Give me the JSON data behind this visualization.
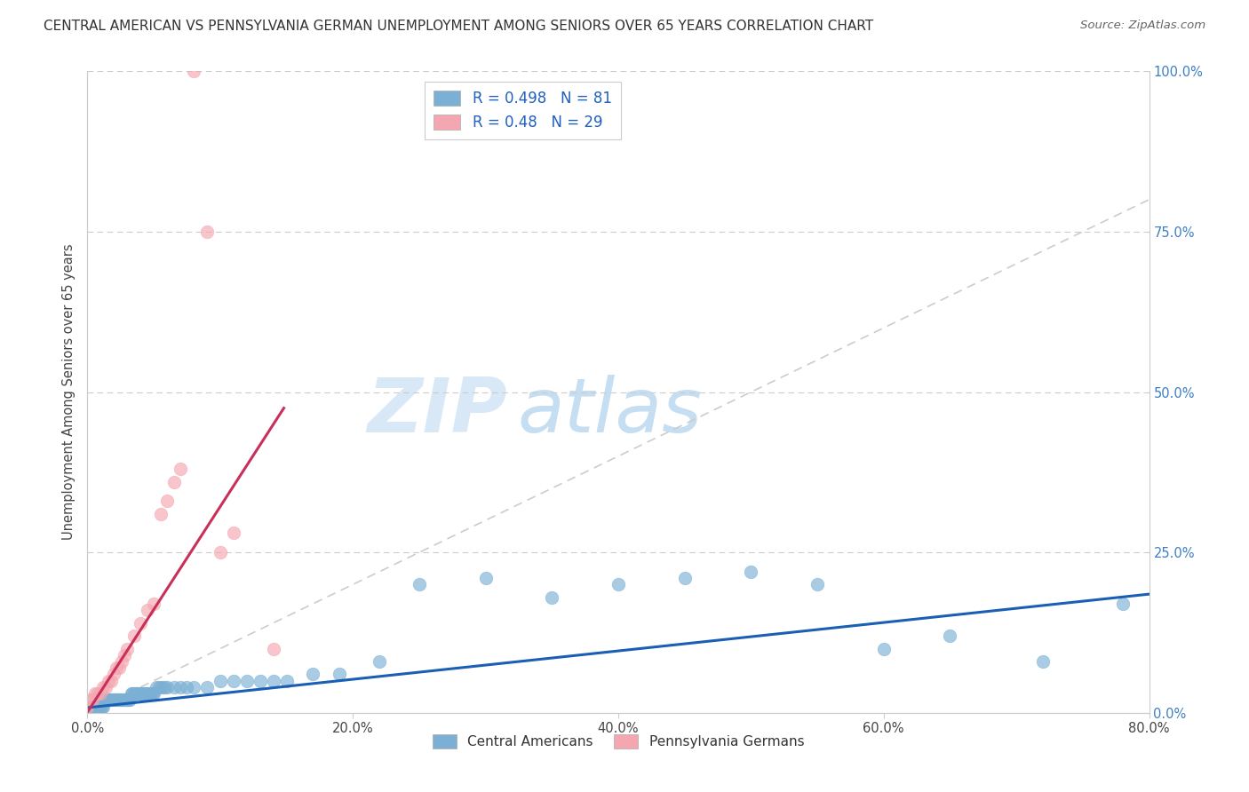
{
  "title": "CENTRAL AMERICAN VS PENNSYLVANIA GERMAN UNEMPLOYMENT AMONG SENIORS OVER 65 YEARS CORRELATION CHART",
  "source": "Source: ZipAtlas.com",
  "ylabel": "Unemployment Among Seniors over 65 years",
  "xlim": [
    0.0,
    0.8
  ],
  "ylim": [
    0.0,
    1.0
  ],
  "xtick_labels": [
    "0.0%",
    "20.0%",
    "40.0%",
    "60.0%",
    "80.0%"
  ],
  "xtick_vals": [
    0.0,
    0.2,
    0.4,
    0.6,
    0.8
  ],
  "ytick_labels": [
    "0.0%",
    "25.0%",
    "50.0%",
    "75.0%",
    "100.0%"
  ],
  "ytick_vals": [
    0.0,
    0.25,
    0.5,
    0.75,
    1.0
  ],
  "blue_color": "#7bafd4",
  "pink_color": "#f4a7b0",
  "blue_line_color": "#1a5fb4",
  "pink_line_color": "#c8305a",
  "legend_text_color": "#2060c0",
  "R_blue": 0.498,
  "N_blue": 81,
  "R_pink": 0.48,
  "N_pink": 29,
  "watermark_zip": "ZIP",
  "watermark_atlas": "atlas",
  "blue_scatter_x": [
    0.0,
    0.002,
    0.003,
    0.004,
    0.005,
    0.006,
    0.007,
    0.008,
    0.009,
    0.01,
    0.01,
    0.011,
    0.012,
    0.013,
    0.014,
    0.015,
    0.016,
    0.017,
    0.018,
    0.019,
    0.02,
    0.021,
    0.022,
    0.023,
    0.024,
    0.025,
    0.026,
    0.027,
    0.028,
    0.029,
    0.03,
    0.031,
    0.032,
    0.033,
    0.034,
    0.035,
    0.036,
    0.037,
    0.038,
    0.039,
    0.04,
    0.041,
    0.042,
    0.043,
    0.044,
    0.045,
    0.046,
    0.047,
    0.048,
    0.049,
    0.05,
    0.052,
    0.054,
    0.056,
    0.058,
    0.06,
    0.065,
    0.07,
    0.075,
    0.08,
    0.09,
    0.1,
    0.11,
    0.12,
    0.13,
    0.14,
    0.15,
    0.17,
    0.19,
    0.22,
    0.25,
    0.3,
    0.35,
    0.4,
    0.45,
    0.5,
    0.55,
    0.6,
    0.65,
    0.72,
    0.78
  ],
  "blue_scatter_y": [
    0.01,
    0.01,
    0.01,
    0.01,
    0.01,
    0.01,
    0.01,
    0.01,
    0.01,
    0.01,
    0.01,
    0.01,
    0.01,
    0.02,
    0.02,
    0.02,
    0.02,
    0.02,
    0.02,
    0.02,
    0.02,
    0.02,
    0.02,
    0.02,
    0.02,
    0.02,
    0.02,
    0.02,
    0.02,
    0.02,
    0.02,
    0.02,
    0.02,
    0.03,
    0.03,
    0.03,
    0.03,
    0.03,
    0.03,
    0.03,
    0.03,
    0.03,
    0.03,
    0.03,
    0.03,
    0.03,
    0.03,
    0.03,
    0.03,
    0.03,
    0.03,
    0.04,
    0.04,
    0.04,
    0.04,
    0.04,
    0.04,
    0.04,
    0.04,
    0.04,
    0.04,
    0.05,
    0.05,
    0.05,
    0.05,
    0.05,
    0.05,
    0.06,
    0.06,
    0.08,
    0.2,
    0.21,
    0.18,
    0.2,
    0.21,
    0.22,
    0.2,
    0.1,
    0.12,
    0.08,
    0.17
  ],
  "pink_scatter_x": [
    0.0,
    0.002,
    0.004,
    0.006,
    0.008,
    0.01,
    0.012,
    0.014,
    0.016,
    0.018,
    0.02,
    0.022,
    0.024,
    0.026,
    0.028,
    0.03,
    0.035,
    0.04,
    0.045,
    0.05,
    0.055,
    0.06,
    0.065,
    0.07,
    0.08,
    0.09,
    0.1,
    0.11,
    0.14
  ],
  "pink_scatter_y": [
    0.01,
    0.02,
    0.02,
    0.03,
    0.03,
    0.03,
    0.04,
    0.04,
    0.05,
    0.05,
    0.06,
    0.07,
    0.07,
    0.08,
    0.09,
    0.1,
    0.12,
    0.14,
    0.16,
    0.17,
    0.31,
    0.33,
    0.36,
    0.38,
    1.0,
    0.75,
    0.25,
    0.28,
    0.1
  ],
  "blue_trend_x": [
    0.0,
    0.8
  ],
  "blue_trend_y": [
    0.008,
    0.185
  ],
  "pink_trend_x": [
    0.0,
    0.148
  ],
  "pink_trend_y": [
    0.001,
    0.475
  ]
}
